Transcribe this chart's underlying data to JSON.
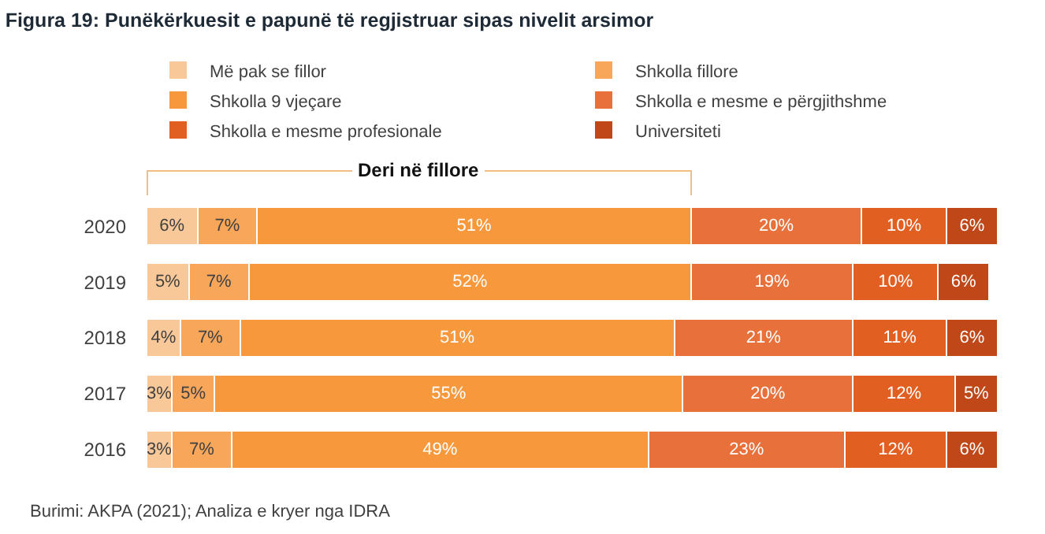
{
  "chart_data": {
    "type": "bar",
    "orientation": "horizontal",
    "stacked": true,
    "title": "Figura 19: Punëkërkuesit e papunë të regjistruar sipas nivelit arsimor",
    "categories": [
      "2020",
      "2019",
      "2018",
      "2017",
      "2016"
    ],
    "series": [
      {
        "name": "Më pak se fillor",
        "color": "#f9c898",
        "values": [
          6,
          5,
          4,
          3,
          3
        ],
        "value_labels": [
          "6%",
          "5%",
          "4%",
          "3%",
          "3%"
        ]
      },
      {
        "name": "Shkolla fillore",
        "color": "#f8a65a",
        "values": [
          7,
          7,
          7,
          5,
          7
        ],
        "value_labels": [
          "7%",
          "7%",
          "7%",
          "5%",
          "7%"
        ]
      },
      {
        "name": "Shkolla 9 vjeçare",
        "color": "#f7983c",
        "values": [
          51,
          52,
          51,
          55,
          49
        ],
        "value_labels": [
          "51%",
          "52%",
          "51%",
          "55%",
          "49%"
        ]
      },
      {
        "name": "Shkolla e mesme e përgjithshme",
        "color": "#e8703b",
        "values": [
          20,
          19,
          21,
          20,
          23
        ],
        "value_labels": [
          "20%",
          "19%",
          "21%",
          "20%",
          "23%"
        ]
      },
      {
        "name": "Shkolla e mesme profesionale",
        "color": "#e25f22",
        "values": [
          10,
          10,
          11,
          12,
          12
        ],
        "value_labels": [
          "10%",
          "10%",
          "11%",
          "12%",
          "12%"
        ]
      },
      {
        "name": "Universiteti",
        "color": "#c04818",
        "values": [
          6,
          6,
          6,
          5,
          6
        ],
        "value_labels": [
          "6%",
          "6%",
          "6%",
          "5%",
          "6%"
        ]
      }
    ],
    "xlim": [
      0,
      100
    ],
    "tick_labels": "y",
    "grid": false,
    "legend": "top",
    "annotations": [
      "Deri në fillore",
      "Burimi: AKPA (2021); Analiza e kryer nga IDRA"
    ]
  }
}
